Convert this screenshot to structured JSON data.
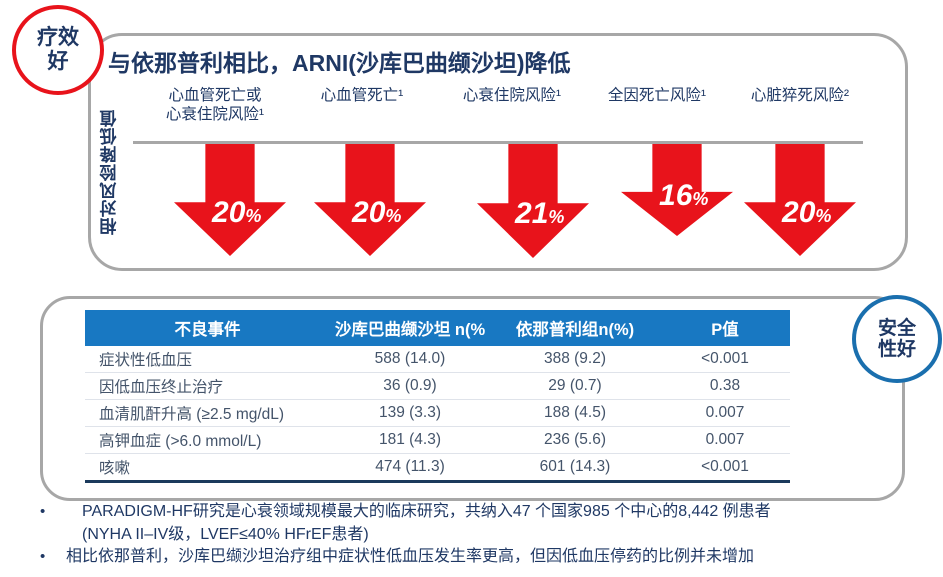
{
  "badges": {
    "efficacy": "疗效\n好",
    "safety": "安全\n性好"
  },
  "panel_top": {
    "title": "与依那普利相比，ARNI(沙库巴曲缬沙坦)降低",
    "y_axis_label": "相对风险降低值",
    "percent_sign": "%",
    "arrows": [
      {
        "header": "心血管死亡或\n心衰住院风险¹",
        "value": "20"
      },
      {
        "header": "心血管死亡¹",
        "value": "20"
      },
      {
        "header": "心衰住院风险¹",
        "value": "21"
      },
      {
        "header": "全因死亡风险¹",
        "value": "16"
      },
      {
        "header": "心脏猝死风险²",
        "value": "20"
      }
    ]
  },
  "table": {
    "headers": [
      "不良事件",
      "沙库巴曲缬沙坦 n(%",
      "依那普利组n(%)",
      "P值"
    ],
    "rows": [
      {
        "event": "症状性低血压",
        "arni": "588 (14.0)",
        "enalapril": "388 (9.2)",
        "p": "<0.001"
      },
      {
        "event": "因低血压终止治疗",
        "arni": "36 (0.9)",
        "enalapril": "29 (0.7)",
        "p": "0.38"
      },
      {
        "event": "血清肌酐升高 (≥2.5 mg/dL)",
        "arni": "139 (3.3)",
        "enalapril": "188 (4.5)",
        "p": "0.007"
      },
      {
        "event": "高钾血症 (>6.0 mmol/L)",
        "arni": "181 (4.3)",
        "enalapril": "236 (5.6)",
        "p": "0.007"
      },
      {
        "event": "咳嗽",
        "arni": "474 (11.3)",
        "enalapril": "601 (14.3)",
        "p": "<0.001"
      }
    ]
  },
  "bullets": {
    "marker": "•",
    "item1": "PARADIGM-HF研究是心衰领域规模最大的临床研究，共纳入47 个国家985 个中心的8,442 例患者\n(NYHA II–IV级，LVEF≤40% HFrEF患者)",
    "item2": "相比依那普利，沙库巴缬沙坦治疗组中症状性低血压发生率更高，但因低血压停药的比例并未增加"
  },
  "colors": {
    "accent_red": "#e8131b",
    "navy_text": "#1f3864",
    "table_header_blue": "#1878c2",
    "safety_circle_blue": "#1a6fae",
    "panel_border_gray": "#a7a7a7"
  },
  "chart_data": [
    {
      "type": "bar",
      "title": "与依那普利相比，ARNI(沙库巴曲缬沙坦)降低",
      "ylabel": "相对风险降低值",
      "categories": [
        "心血管死亡或心衰住院风险¹",
        "心血管死亡¹",
        "心衰住院风险¹",
        "全因死亡风险¹",
        "心脏猝死风险²"
      ],
      "values": [
        20,
        20,
        21,
        16,
        20
      ],
      "unit": "%",
      "style": "downward red arrows, length proportional to relative risk reduction",
      "legend_position": "none",
      "grid": false
    },
    {
      "type": "table",
      "title": "不良事件",
      "columns": [
        "不良事件",
        "沙库巴曲缬沙坦 n(%",
        "依那普利组n(%)",
        "P值"
      ],
      "rows": [
        [
          "症状性低血压",
          "588 (14.0)",
          "388 (9.2)",
          "<0.001"
        ],
        [
          "因低血压终止治疗",
          "36 (0.9)",
          "29 (0.7)",
          "0.38"
        ],
        [
          "血清肌酐升高 (≥2.5 mg/dL)",
          "139 (3.3)",
          "188 (4.5)",
          "0.007"
        ],
        [
          "高钾血症 (>6.0 mmol/L)",
          "181 (4.3)",
          "236 (5.6)",
          "0.007"
        ],
        [
          "咳嗽",
          "474 (11.3)",
          "601 (14.3)",
          "<0.001"
        ]
      ]
    }
  ]
}
